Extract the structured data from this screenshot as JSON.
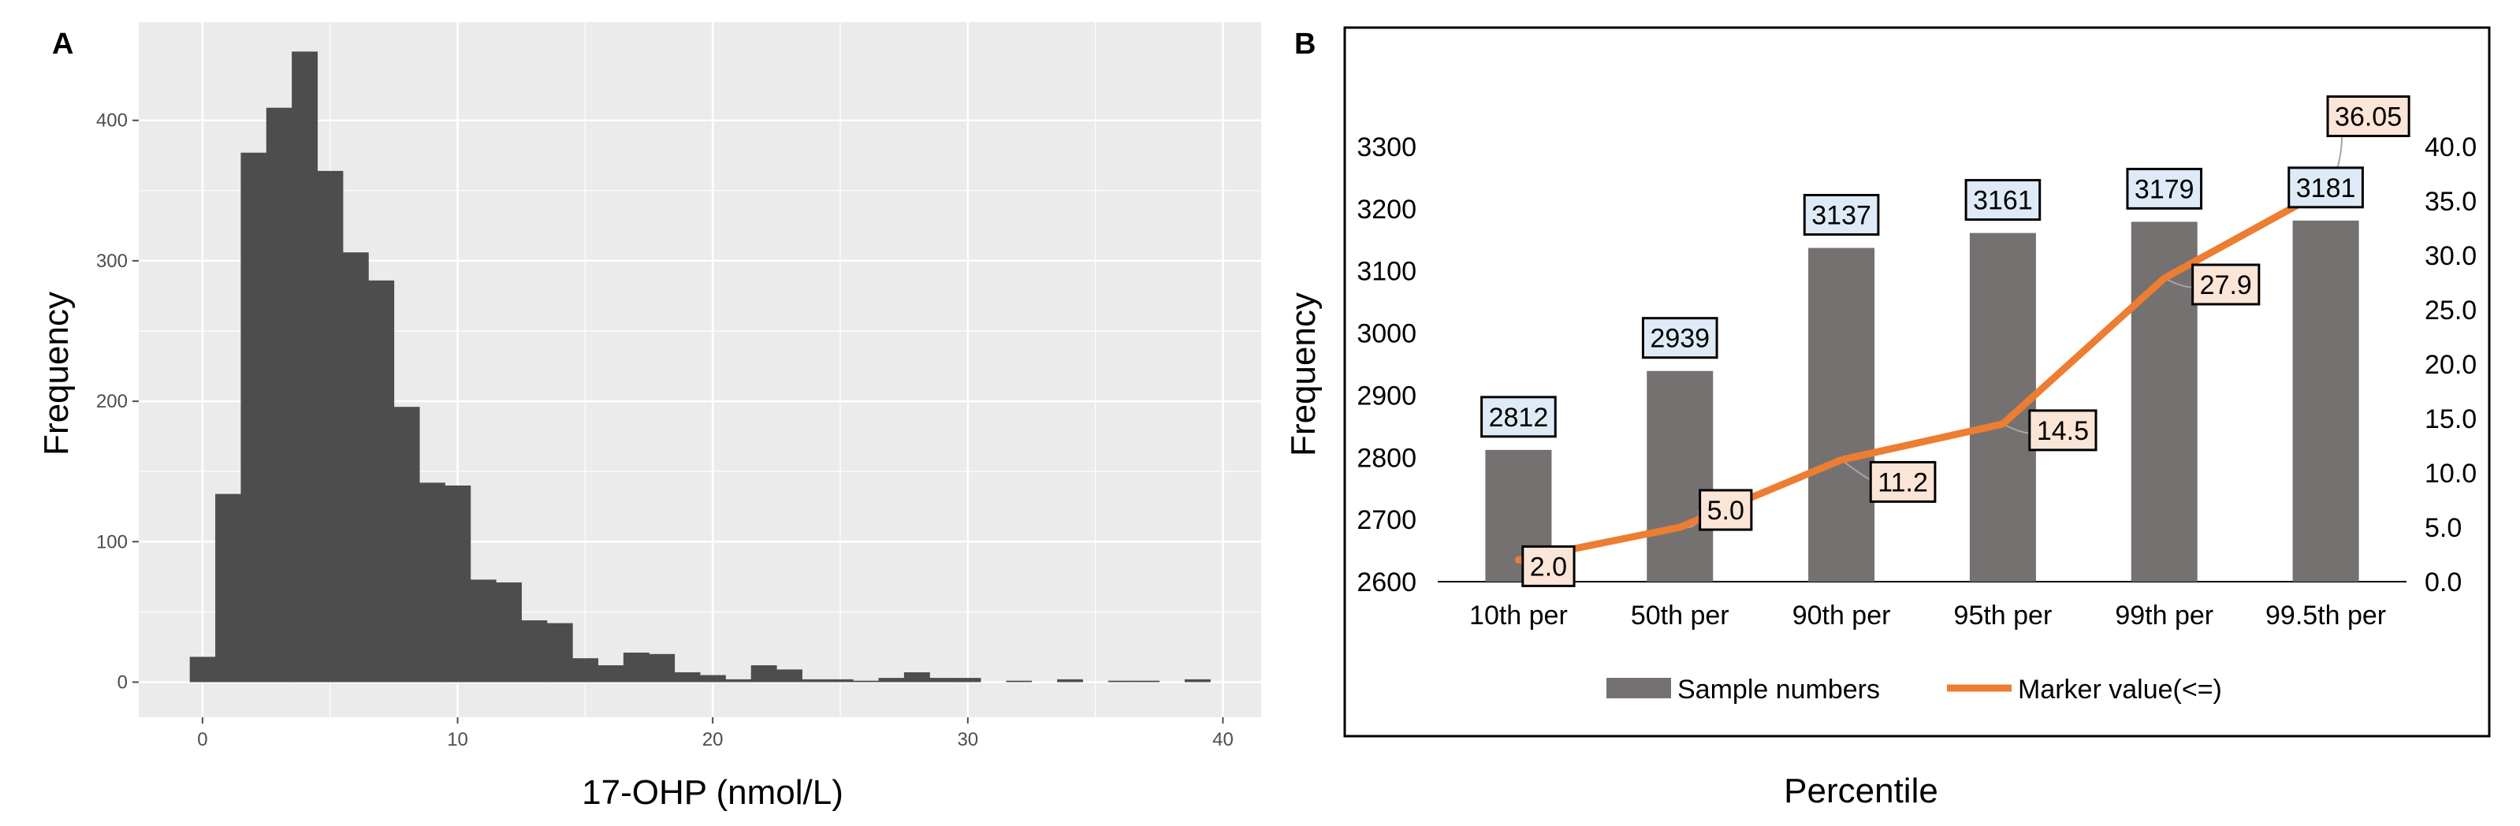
{
  "chart_data": [
    {
      "panel": "A",
      "type": "bar",
      "subtype": "histogram",
      "xlabel": "17-OHP (nmol/L)",
      "ylabel": "Frequency",
      "xlim": [
        -2.5,
        41.5
      ],
      "ylim": [
        -25,
        470
      ],
      "xticks": [
        0,
        10,
        20,
        30,
        40
      ],
      "yticks": [
        0,
        100,
        200,
        300,
        400
      ],
      "bin_width": 1,
      "bin_start": -0.5,
      "values": [
        18,
        134,
        377,
        409,
        449,
        364,
        306,
        286,
        196,
        142,
        140,
        73,
        71,
        44,
        42,
        17,
        12,
        21,
        20,
        7,
        5,
        2,
        12,
        9,
        2,
        2,
        1,
        3,
        7,
        3,
        3,
        0,
        1,
        0,
        2,
        0,
        1,
        1,
        0,
        2
      ],
      "colors": {
        "panel_bg": "#ebebeb",
        "grid_major": "#ffffff",
        "bar": "#4d4d4d"
      }
    },
    {
      "panel": "B",
      "type": "bar",
      "subtype": "bar-line-combo",
      "xlabel": "Percentile",
      "ylabel": "Frequency",
      "categories": [
        "10th per",
        "50th per",
        "90th per",
        "95th per",
        "99th per",
        "99.5th per"
      ],
      "ylim": [
        2600,
        3300
      ],
      "yticks": [
        "2600",
        "2700",
        "2800",
        "2900",
        "3000",
        "3100",
        "3200",
        "3300"
      ],
      "y2lim": [
        0,
        40
      ],
      "y2ticks": [
        "0.0",
        "5.0",
        "10.0",
        "15.0",
        "20.0",
        "25.0",
        "30.0",
        "35.0",
        "40.0"
      ],
      "series": [
        {
          "name": "Sample numbers",
          "type": "bar",
          "axis": "left",
          "values": [
            2812,
            2939,
            3137,
            3161,
            3179,
            3181
          ],
          "labels": [
            "2812",
            "2939",
            "3137",
            "3161",
            "3179",
            "3181"
          ]
        },
        {
          "name": "Marker value(<=)",
          "type": "line",
          "axis": "right",
          "values": [
            2.0,
            5.0,
            11.2,
            14.5,
            27.9,
            36.05
          ],
          "labels": [
            "2.0",
            "5.0",
            "11.2",
            "14.5",
            "27.9",
            "36.05"
          ]
        }
      ],
      "legend": "bottom",
      "colors": {
        "bar": "#767171",
        "line": "#ED7D31",
        "bar_label_bg": "#DEEBF7",
        "line_label_bg": "#FBE5D6"
      }
    }
  ]
}
